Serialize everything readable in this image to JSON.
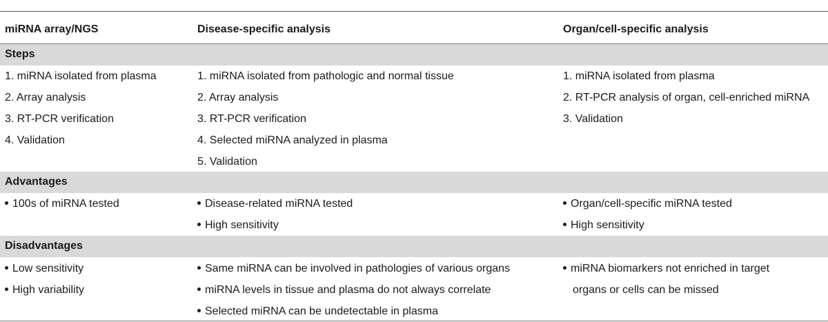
{
  "headers": {
    "col1": "miRNA array/NGS",
    "col2": "Disease-specific analysis",
    "col3": "Organ/cell-specific analysis"
  },
  "sections": {
    "steps": {
      "label": "Steps",
      "col1": [
        "1. miRNA isolated from plasma",
        "2. Array analysis",
        "3. RT-PCR verification",
        "4. Validation"
      ],
      "col2": [
        "1. miRNA isolated from pathologic and normal tissue",
        "2. Array analysis",
        "3. RT-PCR verification",
        "4. Selected miRNA analyzed in plasma",
        "5. Validation"
      ],
      "col3": [
        "1. miRNA isolated from plasma",
        "2. RT-PCR analysis of organ, cell-enriched miRNA",
        "3. Validation"
      ]
    },
    "advantages": {
      "label": "Advantages",
      "col1": [
        "100s of miRNA tested"
      ],
      "col2": [
        "Disease-related miRNA tested",
        "High sensitivity"
      ],
      "col3": [
        "Organ/cell-specific miRNA tested",
        "High sensitivity"
      ]
    },
    "disadvantages": {
      "label": "Disadvantages",
      "col1": [
        "Low sensitivity",
        "High variability"
      ],
      "col2": [
        "Same miRNA can be involved in pathologies of various organs",
        "miRNA levels in tissue and plasma do not always correlate",
        "Selected miRNA can be undetectable in plasma"
      ],
      "col3_line1": "miRNA biomarkers not enriched in target",
      "col3_line2": "organs or cells can be missed"
    }
  }
}
